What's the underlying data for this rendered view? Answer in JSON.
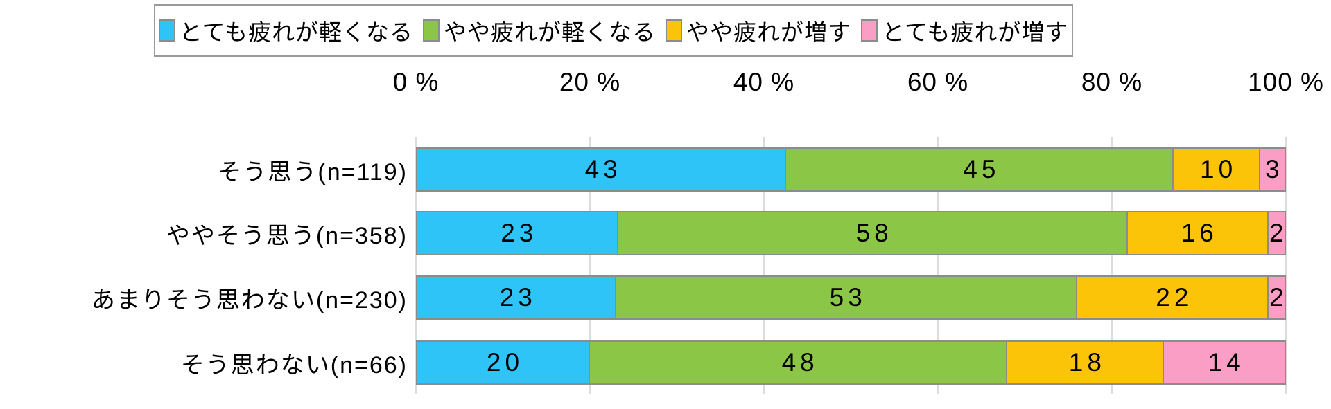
{
  "page": {
    "background": "#ffffff"
  },
  "chart_data": {
    "type": "bar",
    "subtype": "horizontal-stacked-100pct",
    "title": "",
    "legend_position": "top",
    "grid": true,
    "x_axis": {
      "min": 0,
      "max": 100,
      "tick_labels": [
        "0 %",
        "20 %",
        "40 %",
        "60 %",
        "80 %",
        "100 %"
      ]
    },
    "categories": [
      "そう思う(n=119)",
      "ややそう思う(n=358)",
      "あまりそう思わない(n=230)",
      "そう思わない(n=66)"
    ],
    "series": [
      {
        "name": "とても疲れが軽くなる",
        "color": "#2ec4f8",
        "values": [
          43,
          23,
          23,
          20
        ]
      },
      {
        "name": "やや疲れが軽くなる",
        "color": "#8cc646",
        "values": [
          45,
          58,
          53,
          48
        ]
      },
      {
        "name": "やや疲れが増す",
        "color": "#fcc408",
        "values": [
          10,
          16,
          22,
          18
        ]
      },
      {
        "name": "とても疲れが増す",
        "color": "#fa9ec6",
        "values": [
          3,
          2,
          2,
          14
        ]
      }
    ],
    "value_labels": "inside-center"
  },
  "style": {
    "segment_border": "#8c8c8c",
    "gridline_color": "#dcdcdc",
    "legend_border": "#9a9a9a",
    "text_color": "#000000"
  }
}
